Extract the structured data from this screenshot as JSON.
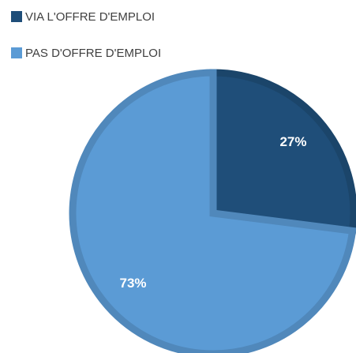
{
  "chart_data": {
    "type": "pie",
    "categories": [
      "VIA L'OFFRE D'EMPLOI",
      "PAS D'OFFRE D'EMPLOI"
    ],
    "values": [
      27,
      73
    ],
    "value_labels": [
      "27%",
      "73%"
    ],
    "colors": [
      "#1f4e79",
      "#5b9bd5"
    ],
    "legend": "top-left"
  }
}
